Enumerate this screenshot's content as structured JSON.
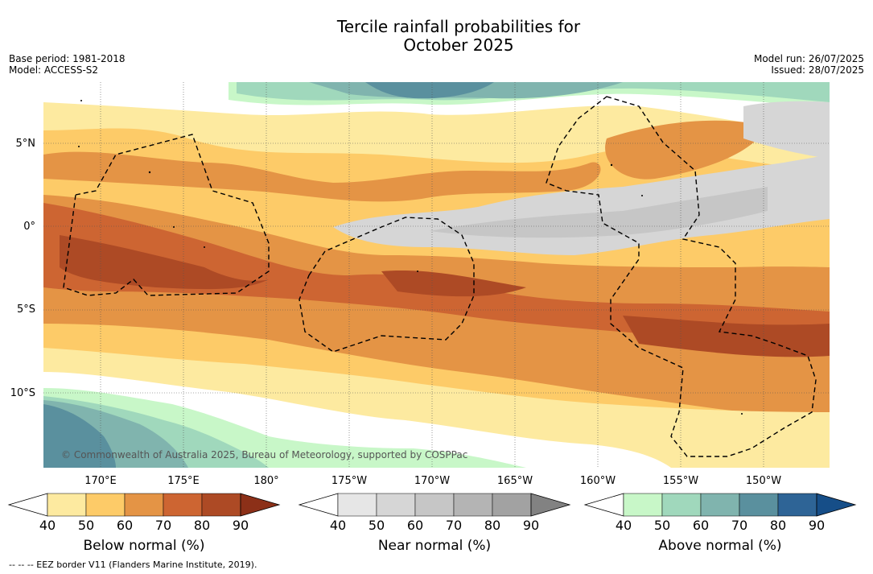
{
  "title_line1": "Tercile rainfall probabilities for",
  "title_line2": "October 2025",
  "meta_left": [
    "Base period: 1981-2018",
    "Model: ACCESS-S2"
  ],
  "meta_right": [
    "Model run: 26/07/2025",
    "Issued: 28/07/2025"
  ],
  "copyright": "© Commonwealth of Australia 2025, Bureau of Meteorology, supported by COSPPac",
  "footnote": "--  --  -- EEZ border V11 (Flanders Marine Institute, 2019).",
  "lat_labels": [
    "5°N",
    "0°",
    "5°S",
    "10°S"
  ],
  "lon_labels": [
    "170°E",
    "175°E",
    "180°",
    "175°W",
    "170°W",
    "165°W",
    "160°W",
    "155°W",
    "150°W"
  ],
  "colorbars": [
    {
      "name": "Below normal (%)",
      "ticks": [
        "40",
        "50",
        "60",
        "70",
        "80",
        "90"
      ],
      "colors": [
        "#ffffff",
        "#fdeaa0",
        "#fdcb68",
        "#e49445",
        "#cd6532",
        "#ad4a25",
        "#8c3018"
      ]
    },
    {
      "name": "Near normal (%)",
      "ticks": [
        "40",
        "50",
        "60",
        "70",
        "80",
        "90"
      ],
      "colors": [
        "#ffffff",
        "#e6e6e6",
        "#d6d6d6",
        "#c6c6c6",
        "#b4b4b4",
        "#a2a2a2",
        "#828282"
      ]
    },
    {
      "name": "Above normal (%)",
      "ticks": [
        "40",
        "50",
        "60",
        "70",
        "80",
        "90"
      ],
      "colors": [
        "#ffffff",
        "#c8f7c8",
        "#a0d8bc",
        "#80b4ae",
        "#5a909e",
        "#2e6496",
        "#164e88"
      ]
    }
  ]
}
